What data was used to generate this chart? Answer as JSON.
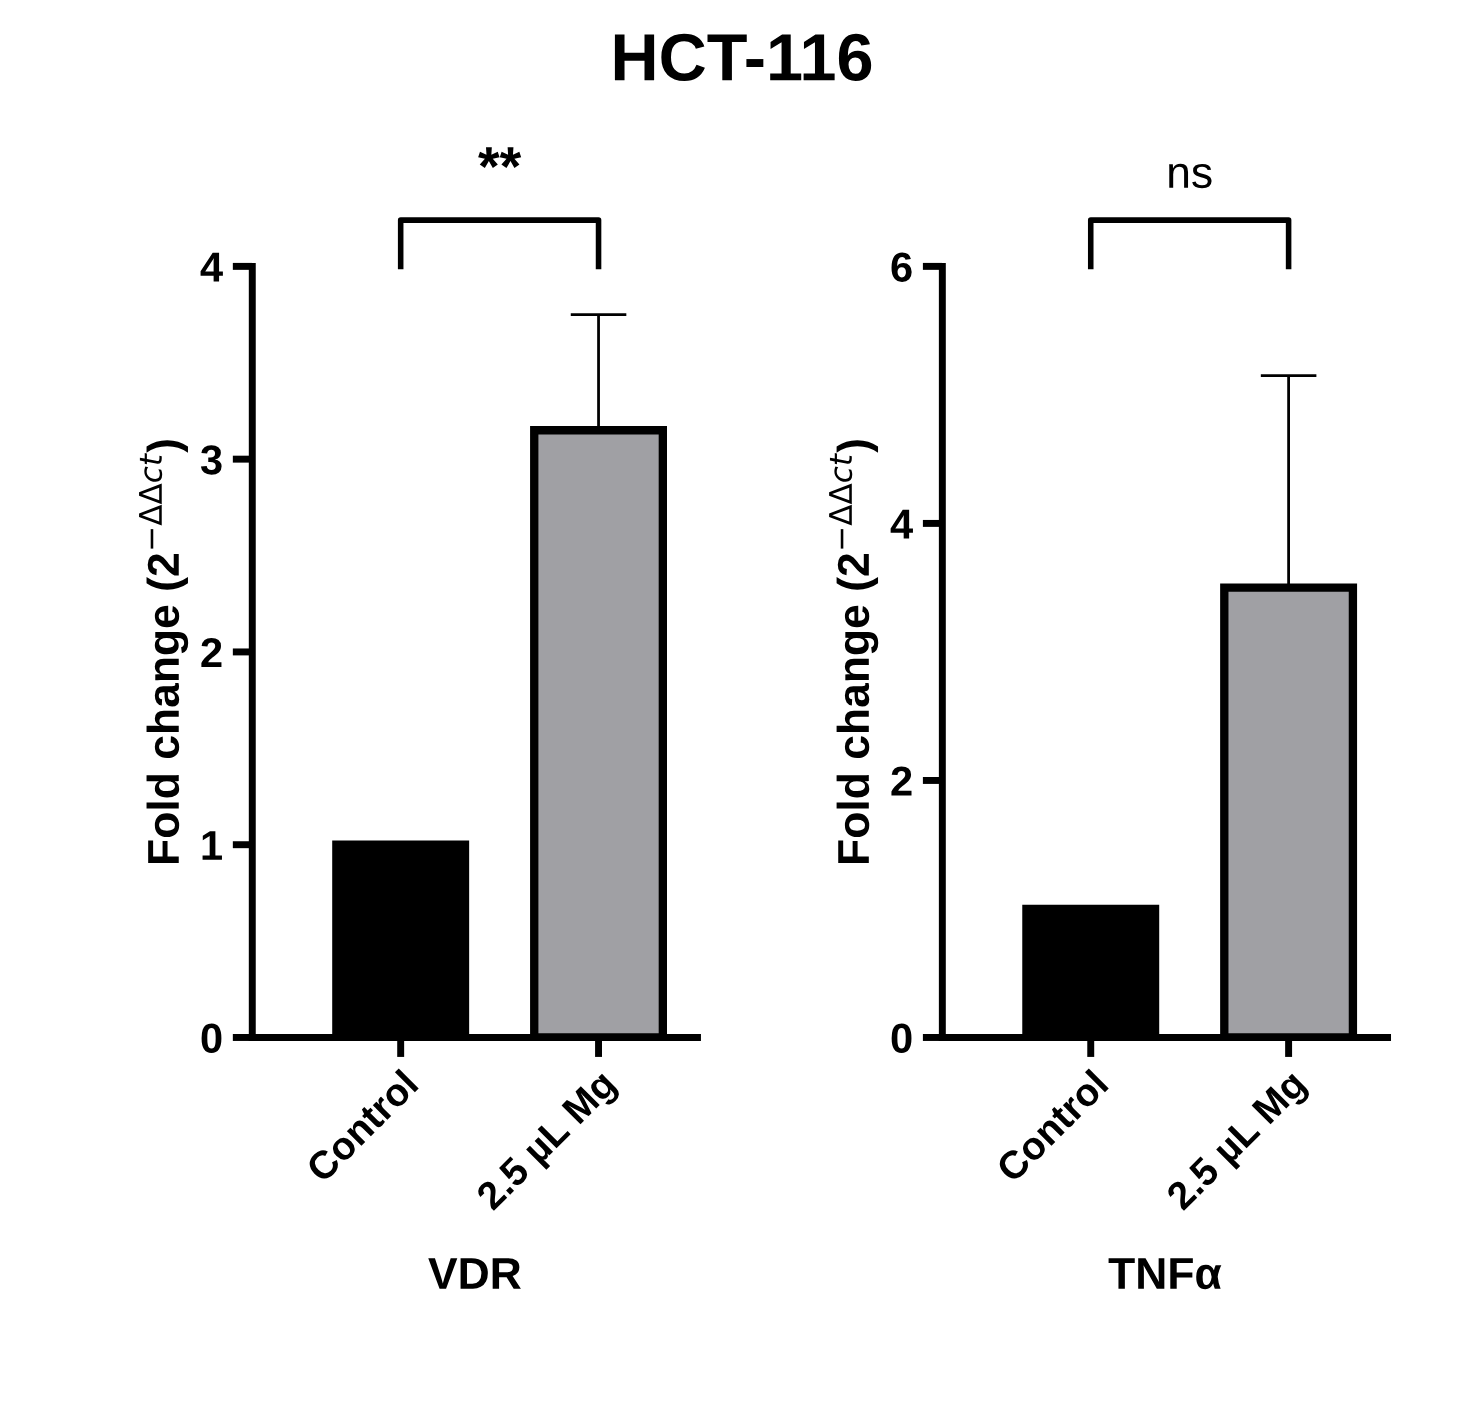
{
  "chart_data": [
    {
      "type": "bar",
      "title": "HCT-116",
      "categories": [
        "Control",
        "2.5 µL Mg"
      ],
      "values": [
        1.0,
        3.15
      ],
      "colors": [
        "#000000",
        "#a0a0a4"
      ],
      "errors": [
        null,
        [
          3.15,
          3.75
        ]
      ],
      "xlabel": "VDR",
      "ylabel": "Fold change (2$^{−ΔΔct}$)",
      "ylim": [
        0,
        4
      ],
      "yticks": [
        0,
        1,
        2,
        3,
        4
      ],
      "annotations": [
        "**"
      ],
      "grid": false,
      "legend": false
    },
    {
      "type": "bar",
      "categories": [
        "Control",
        "2.5 µL Mg"
      ],
      "values": [
        1.0,
        3.5
      ],
      "colors": [
        "#000000",
        "#a0a0a4"
      ],
      "errors": [
        null,
        [
          3.5,
          5.15
        ]
      ],
      "xlabel": "TNFα",
      "ylabel": "Fold change (2$^{−ΔΔct}$)",
      "ylim": [
        0,
        6
      ],
      "yticks": [
        0,
        2,
        4,
        6
      ],
      "annotations": [
        "ns"
      ],
      "grid": false,
      "legend": false
    }
  ]
}
